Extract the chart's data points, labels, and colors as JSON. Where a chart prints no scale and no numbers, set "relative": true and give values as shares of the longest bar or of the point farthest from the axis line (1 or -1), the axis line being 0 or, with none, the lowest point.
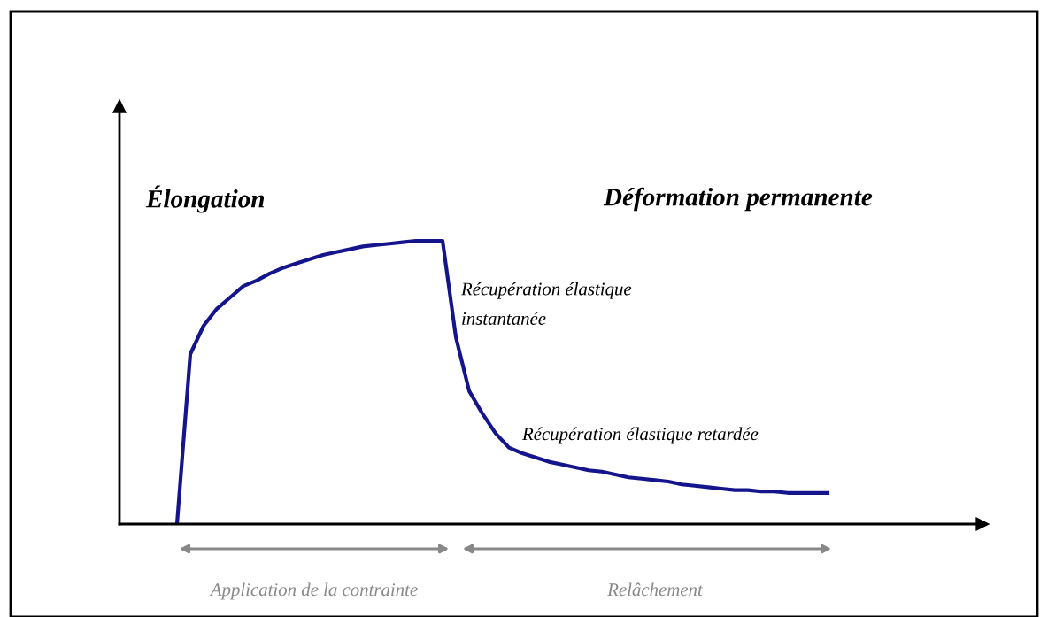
{
  "chart_data": {
    "type": "line",
    "relative": true,
    "categories": [
      null,
      null,
      null,
      null,
      null,
      null,
      null,
      null,
      null,
      null,
      null,
      null,
      null,
      null,
      null,
      null,
      null,
      null,
      null,
      null,
      null,
      null,
      null,
      null,
      null,
      null,
      null,
      null,
      null,
      null,
      null,
      null,
      null,
      null,
      null,
      null,
      null,
      null,
      null,
      null,
      null,
      null,
      null,
      null,
      null,
      null,
      null,
      null,
      null,
      null
    ],
    "series": [
      {
        "color": "#14148c",
        "values": [
          0,
          0.6,
          0.7,
          0.76,
          0.8,
          0.84,
          0.86,
          0.885,
          0.905,
          0.92,
          0.935,
          0.95,
          0.96,
          0.97,
          0.98,
          0.985,
          0.99,
          0.995,
          1,
          1,
          1,
          0.66,
          0.47,
          0.39,
          0.32,
          0.27,
          0.25,
          0.235,
          0.22,
          0.21,
          0.2,
          0.19,
          0.185,
          0.175,
          0.165,
          0.16,
          0.155,
          0.15,
          0.14,
          0.135,
          0.13,
          0.125,
          0.12,
          0.12,
          0.115,
          0.115,
          0.11,
          0.11,
          0.11,
          0.11
        ]
      }
    ],
    "annotations": [
      "Élongation",
      "Déformation permanente",
      "Récupération élastique\ninstantanée",
      "Récupération élastique retardée",
      "Application de la contrainte",
      "Relâchement"
    ],
    "marker": "none",
    "line_style": "solid"
  }
}
